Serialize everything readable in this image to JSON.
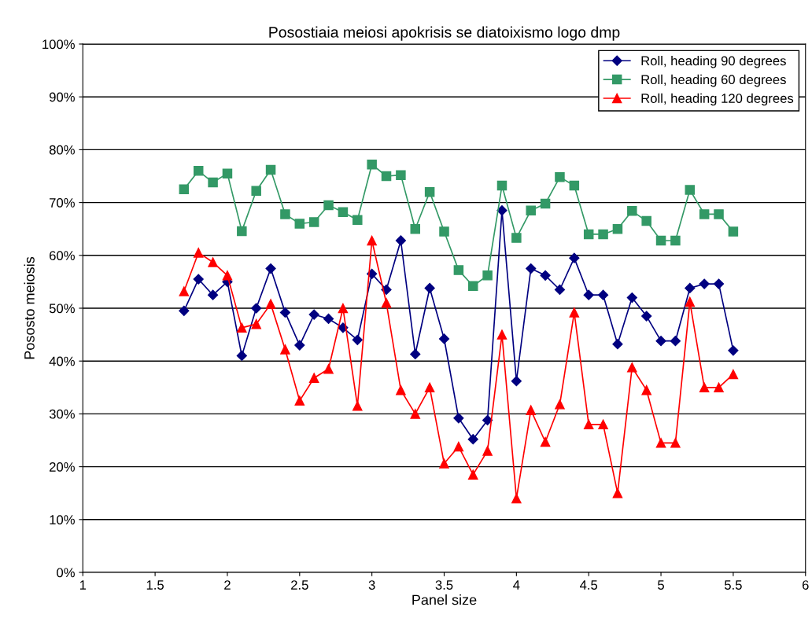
{
  "chart_data": {
    "type": "line",
    "title": "Posostiaia meiosi apokrisis se diatoixismo logo dmp",
    "xlabel": "Panel size",
    "ylabel": "Pososto meiosis",
    "x": [
      1.7,
      1.8,
      1.9,
      2.0,
      2.1,
      2.2,
      2.3,
      2.4,
      2.5,
      2.6,
      2.7,
      2.8,
      2.9,
      3.0,
      3.1,
      3.2,
      3.3,
      3.4,
      3.5,
      3.6,
      3.7,
      3.8,
      3.9,
      4.0,
      4.1,
      4.2,
      4.3,
      4.4,
      4.5,
      4.6,
      4.7,
      4.8,
      4.9,
      5.0,
      5.1,
      5.2,
      5.3,
      5.4,
      5.5
    ],
    "series": [
      {
        "name": "Roll, heading 90 degrees",
        "color": "#000080",
        "marker": "diamond",
        "values": [
          49.5,
          55.5,
          52.5,
          55,
          41,
          50,
          57.5,
          49.2,
          43,
          48.8,
          48,
          46.3,
          44,
          56.5,
          53.5,
          62.8,
          41.3,
          53.8,
          44.2,
          29.2,
          25.2,
          28.8,
          68.5,
          36.2,
          57.5,
          56.2,
          53.5,
          59.5,
          52.5,
          52.5,
          43.2,
          52,
          48.5,
          43.8,
          43.8,
          53.8,
          54.6,
          54.6,
          42
        ]
      },
      {
        "name": "Roll, heading 60 degrees",
        "color": "#339966",
        "marker": "square",
        "values": [
          72.5,
          76,
          73.8,
          75.5,
          64.6,
          72.2,
          76.2,
          67.8,
          66,
          66.3,
          69.5,
          68.2,
          66.7,
          77.2,
          75,
          75.2,
          65,
          72,
          64.5,
          57.2,
          54.2,
          56.2,
          73.2,
          63.3,
          68.5,
          69.8,
          74.8,
          73.2,
          64,
          64,
          65,
          68.4,
          66.5,
          62.8,
          62.8,
          72.4,
          67.8,
          67.8,
          64.5
        ]
      },
      {
        "name": "Roll, heading 120 degrees",
        "color": "#ff0000",
        "marker": "triangle",
        "values": [
          53.2,
          60.5,
          58.7,
          56.2,
          46.3,
          47,
          50.8,
          42.2,
          32.5,
          36.8,
          38.5,
          50,
          31.5,
          62.8,
          51,
          34.5,
          30,
          35,
          20.6,
          23.8,
          18.5,
          23,
          45,
          14,
          30.7,
          24.7,
          31.8,
          49.2,
          28,
          28,
          15,
          38.8,
          34.5,
          24.5,
          24.5,
          51.2,
          35,
          35,
          37.5
        ]
      }
    ],
    "xlim": [
      1,
      6
    ],
    "xticks": [
      1,
      1.5,
      2,
      2.5,
      3,
      3.5,
      4,
      4.5,
      5,
      5.5,
      6
    ],
    "ylim": [
      0,
      100
    ],
    "yticks": [
      {
        "value": 0,
        "label": "0%"
      },
      {
        "value": 10,
        "label": "10%"
      },
      {
        "value": 20,
        "label": "20%"
      },
      {
        "value": 30,
        "label": "30%"
      },
      {
        "value": 40,
        "label": "40%"
      },
      {
        "value": 50,
        "label": "50%"
      },
      {
        "value": 60,
        "label": "60%"
      },
      {
        "value": 70,
        "label": "70%"
      },
      {
        "value": 80,
        "label": "80%"
      },
      {
        "value": 90,
        "label": "90%"
      },
      {
        "value": 100,
        "label": "100%"
      }
    ],
    "grid": "y",
    "legend": "top right",
    "line_style": "solid"
  }
}
